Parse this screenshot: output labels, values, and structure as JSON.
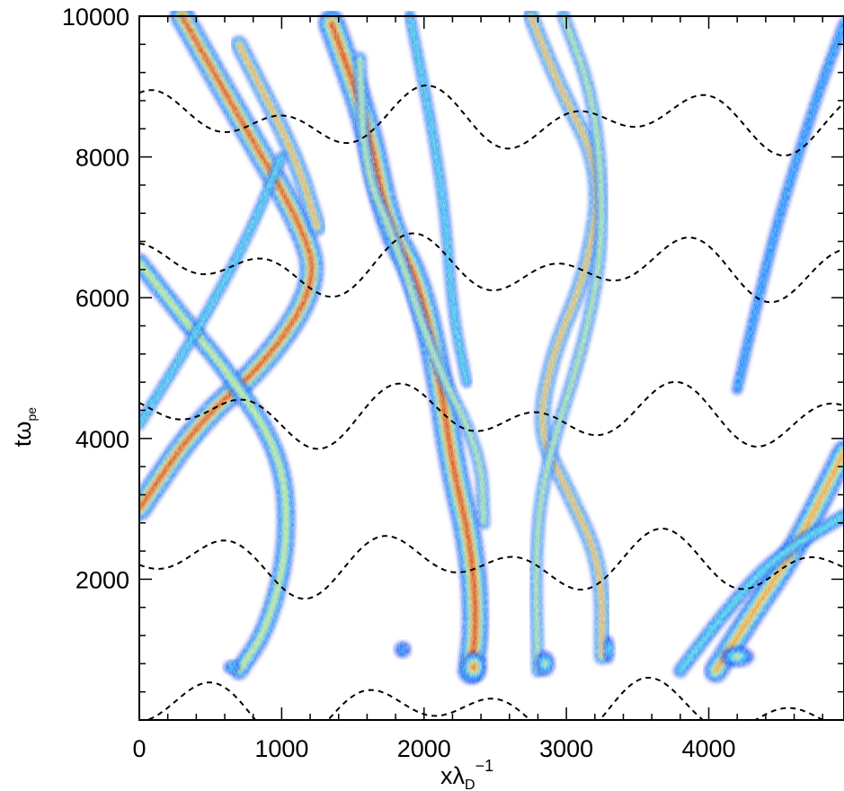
{
  "chart_data": {
    "type": "heatmap",
    "title": "",
    "xlabel": {
      "main": "xλ",
      "sub": "D",
      "sup": "−1"
    },
    "ylabel": {
      "main": "tω",
      "sub": "pe"
    },
    "xlim": [
      0,
      4950
    ],
    "ylim": [
      0,
      10000
    ],
    "x_ticks": [
      {
        "value": 0,
        "label": "0"
      },
      {
        "value": 1000,
        "label": "1000"
      },
      {
        "value": 2000,
        "label": "2000"
      },
      {
        "value": 3000,
        "label": "3000"
      },
      {
        "value": 4000,
        "label": "4000"
      }
    ],
    "y_ticks": [
      {
        "value": 2000,
        "label": "2000"
      },
      {
        "value": 4000,
        "label": "4000"
      },
      {
        "value": 6000,
        "label": "6000"
      },
      {
        "value": 8000,
        "label": "8000"
      },
      {
        "value": 10000,
        "label": "10000"
      }
    ],
    "x_minor_step": 200,
    "y_minor_step": 400,
    "grid": false,
    "legend": "none",
    "colormap": [
      "#0a1dd8",
      "#1a5cff",
      "#1fb3ff",
      "#5fe8d8",
      "#e8e84a",
      "#ff7a1a",
      "#c0122a"
    ],
    "beams": [
      {
        "path": [
          [
            300,
            10000
          ],
          [
            720,
            8500
          ],
          [
            1150,
            7000
          ],
          [
            1250,
            6200
          ],
          [
            900,
            5100
          ],
          [
            400,
            4200
          ],
          [
            0,
            3000
          ]
        ],
        "width": 170,
        "intensity": 0.95
      },
      {
        "path": [
          [
            700,
            9600
          ],
          [
            1100,
            8000
          ],
          [
            1250,
            7000
          ]
        ],
        "width": 120,
        "intensity": 0.8
      },
      {
        "path": [
          [
            0,
            6500
          ],
          [
            350,
            5600
          ],
          [
            600,
            5000
          ],
          [
            1000,
            3800
          ],
          [
            1050,
            2500
          ],
          [
            900,
            1300
          ],
          [
            700,
            700
          ]
        ],
        "width": 130,
        "intensity": 0.65
      },
      {
        "path": [
          [
            0,
            4200
          ],
          [
            400,
            5500
          ],
          [
            750,
            6800
          ],
          [
            1000,
            8000
          ]
        ],
        "width": 80,
        "intensity": 0.45
      },
      {
        "path": [
          [
            1350,
            9900
          ],
          [
            1600,
            8500
          ],
          [
            1750,
            7000
          ],
          [
            1950,
            6300
          ],
          [
            2100,
            5000
          ],
          [
            2200,
            3600
          ],
          [
            2330,
            2500
          ],
          [
            2370,
            1400
          ],
          [
            2330,
            700
          ]
        ],
        "width": 190,
        "intensity": 1.0
      },
      {
        "path": [
          [
            1550,
            9400
          ],
          [
            1580,
            7800
          ],
          [
            1800,
            6800
          ],
          [
            2050,
            5200
          ],
          [
            2400,
            3800
          ],
          [
            2420,
            2800
          ]
        ],
        "width": 90,
        "intensity": 0.7
      },
      {
        "path": [
          [
            1900,
            10000
          ],
          [
            2050,
            8500
          ],
          [
            2150,
            7200
          ],
          [
            2200,
            5800
          ],
          [
            2300,
            4800
          ]
        ],
        "width": 80,
        "intensity": 0.5
      },
      {
        "path": [
          [
            2750,
            10000
          ],
          [
            2950,
            9000
          ],
          [
            3250,
            7800
          ],
          [
            3150,
            6400
          ],
          [
            2900,
            5200
          ],
          [
            2800,
            4100
          ],
          [
            3000,
            3300
          ],
          [
            3250,
            2200
          ],
          [
            3250,
            900
          ]
        ],
        "width": 110,
        "intensity": 0.75
      },
      {
        "path": [
          [
            2980,
            10000
          ],
          [
            3200,
            8800
          ],
          [
            3270,
            7000
          ],
          [
            3150,
            5500
          ],
          [
            2850,
            3600
          ],
          [
            2780,
            2400
          ],
          [
            2800,
            700
          ]
        ],
        "width": 90,
        "intensity": 0.7
      },
      {
        "path": [
          [
            4050,
            700
          ],
          [
            4300,
            1500
          ],
          [
            4600,
            2400
          ],
          [
            4950,
            3800
          ]
        ],
        "width": 170,
        "intensity": 0.9
      },
      {
        "path": [
          [
            3800,
            700
          ],
          [
            4100,
            1500
          ],
          [
            4450,
            2300
          ],
          [
            4950,
            2900
          ]
        ],
        "width": 100,
        "intensity": 0.55
      },
      {
        "path": [
          [
            4950,
            9900
          ],
          [
            4750,
            8800
          ],
          [
            4500,
            7200
          ],
          [
            4350,
            6000
          ],
          [
            4200,
            4700
          ]
        ],
        "width": 80,
        "intensity": 0.4
      }
    ],
    "blobs": [
      {
        "x": 2350,
        "y": 750,
        "rx": 90,
        "ry": 220,
        "intensity": 1.0
      },
      {
        "x": 2850,
        "y": 800,
        "rx": 70,
        "ry": 180,
        "intensity": 0.7
      },
      {
        "x": 4200,
        "y": 900,
        "rx": 120,
        "ry": 150,
        "intensity": 0.6
      },
      {
        "x": 650,
        "y": 750,
        "rx": 60,
        "ry": 100,
        "intensity": 0.45
      },
      {
        "x": 1850,
        "y": 1000,
        "rx": 60,
        "ry": 120,
        "intensity": 0.4
      },
      {
        "x": 3300,
        "y": 1000,
        "rx": 40,
        "ry": 200,
        "intensity": 0.55
      }
    ],
    "trajectories": {
      "count": 6,
      "t_spacing": 2100,
      "t_offset": 0,
      "amplitude": 500,
      "wavelength": 1000,
      "drift": -1.9
    }
  }
}
